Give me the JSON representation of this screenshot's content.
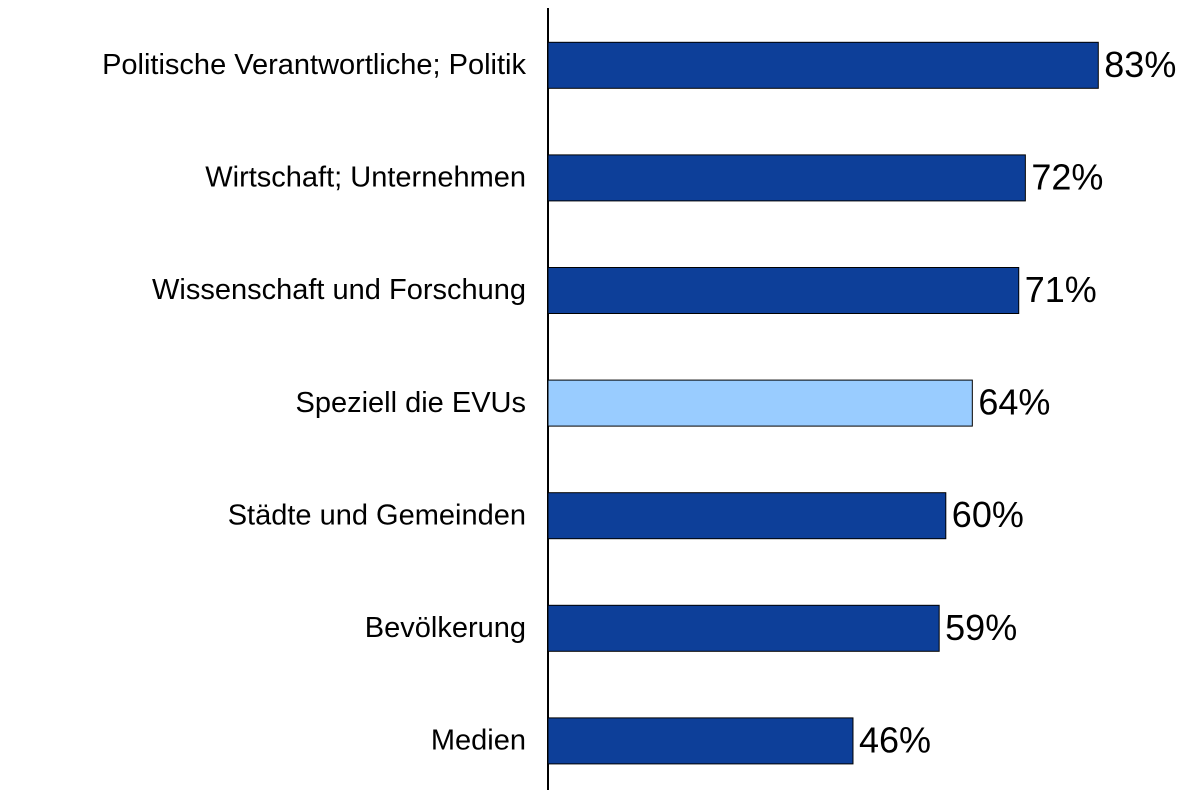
{
  "chart_data": {
    "type": "bar",
    "orientation": "horizontal",
    "categories": [
      "Politische Verantwortliche; Politik",
      "Wirtschaft; Unternehmen",
      "Wissenschaft und Forschung",
      "Speziell die EVUs",
      "Städte und Gemeinden",
      "Bevölkerung",
      "Medien"
    ],
    "values": [
      83,
      72,
      71,
      64,
      60,
      59,
      46
    ],
    "value_labels": [
      "83%",
      "72%",
      "71%",
      "64%",
      "60%",
      "59%",
      "46%"
    ],
    "colors": [
      "#0d3f99",
      "#0d3f99",
      "#0d3f99",
      "#99ccff",
      "#0d3f99",
      "#0d3f99",
      "#0d3f99"
    ],
    "xlim": [
      0,
      100
    ]
  }
}
